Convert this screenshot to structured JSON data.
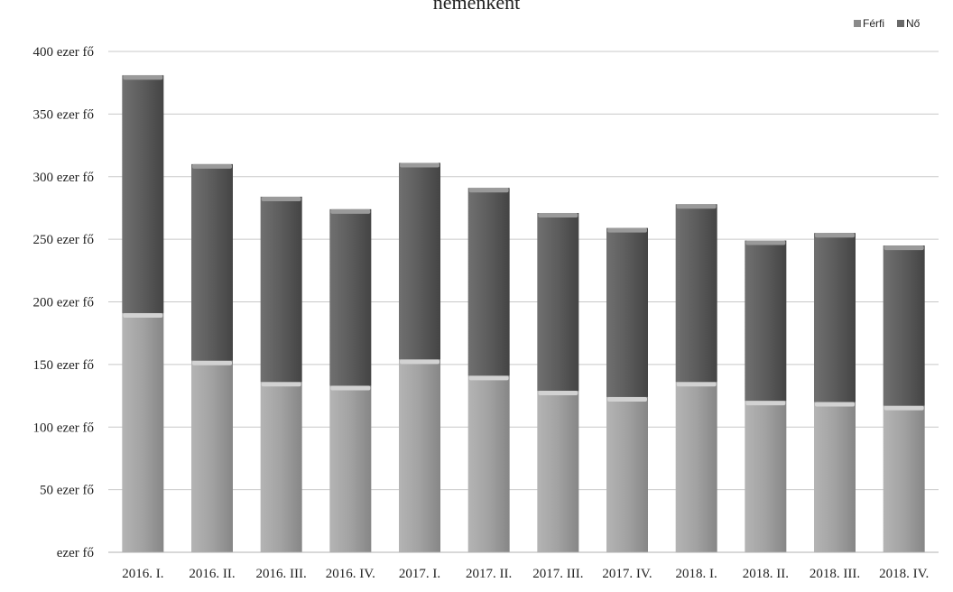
{
  "chart_data": {
    "type": "bar",
    "stacked": true,
    "title": "nemenként",
    "xlabel": "",
    "ylabel": "",
    "categories": [
      "2016. I.",
      "2016. II.",
      "2016. III.",
      "2016. IV.",
      "2017. I.",
      "2017. II.",
      "2017. III.",
      "2017. IV.",
      "2018. I.",
      "2018. II.",
      "2018. III.",
      "2018. IV."
    ],
    "series": [
      {
        "name": "Nő",
        "color": "#9a9a9a",
        "values": [
          191,
          153,
          136,
          133,
          154,
          141,
          129,
          124,
          136,
          121,
          120,
          117
        ]
      },
      {
        "name": "Férfi",
        "color": "#5a5a5a",
        "values": [
          190,
          157,
          148,
          141,
          157,
          150,
          142,
          135,
          142,
          128,
          135,
          128
        ]
      }
    ],
    "ylim": [
      0,
      400
    ],
    "yticks": [
      0,
      50,
      100,
      150,
      200,
      250,
      300,
      350,
      400
    ],
    "ytick_labels": [
      "ezer fő",
      "50 ezer fő",
      "100 ezer fő",
      "150 ezer fő",
      "200 ezer fő",
      "250 ezer fő",
      "300 ezer fő",
      "350 ezer fő",
      "400 ezer fő"
    ],
    "grid": true,
    "legend": {
      "position": "top-right",
      "entries": [
        "Férfi",
        "Nő"
      ]
    }
  }
}
